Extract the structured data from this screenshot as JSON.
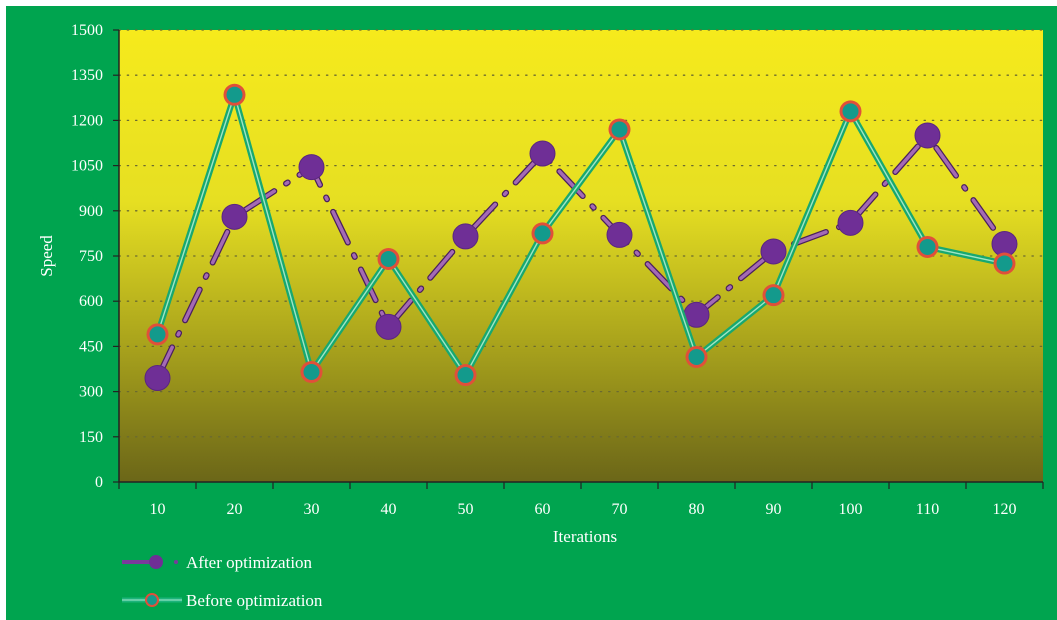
{
  "chart_data": {
    "type": "line",
    "title": "",
    "xlabel": "Iterations",
    "ylabel": "Speed",
    "categories": [
      "10",
      "20",
      "30",
      "40",
      "50",
      "60",
      "70",
      "80",
      "90",
      "100",
      "110",
      "120"
    ],
    "yticks": [
      "0",
      "150",
      "300",
      "450",
      "600",
      "750",
      "900",
      "1050",
      "1200",
      "1350",
      "1500"
    ],
    "ylim": [
      0,
      1500
    ],
    "grid": "horizontal dotted",
    "legend_position": "bottom-left",
    "series": [
      {
        "name": "After optimization",
        "values": [
          345,
          880,
          1045,
          515,
          815,
          1090,
          820,
          555,
          765,
          860,
          1150,
          790
        ],
        "color": "#7a3a9c",
        "style": "dash-dot line with large circle markers"
      },
      {
        "name": "Before optimization",
        "values": [
          490,
          1285,
          365,
          740,
          355,
          825,
          1170,
          415,
          620,
          1230,
          780,
          725
        ],
        "color": "#1db37a",
        "style": "double line with teal circle markers and red rims"
      }
    ],
    "colors": {
      "background": "#00a44f",
      "plot_top": "#f6ea1c",
      "plot_bottom": "#6b6618"
    }
  }
}
